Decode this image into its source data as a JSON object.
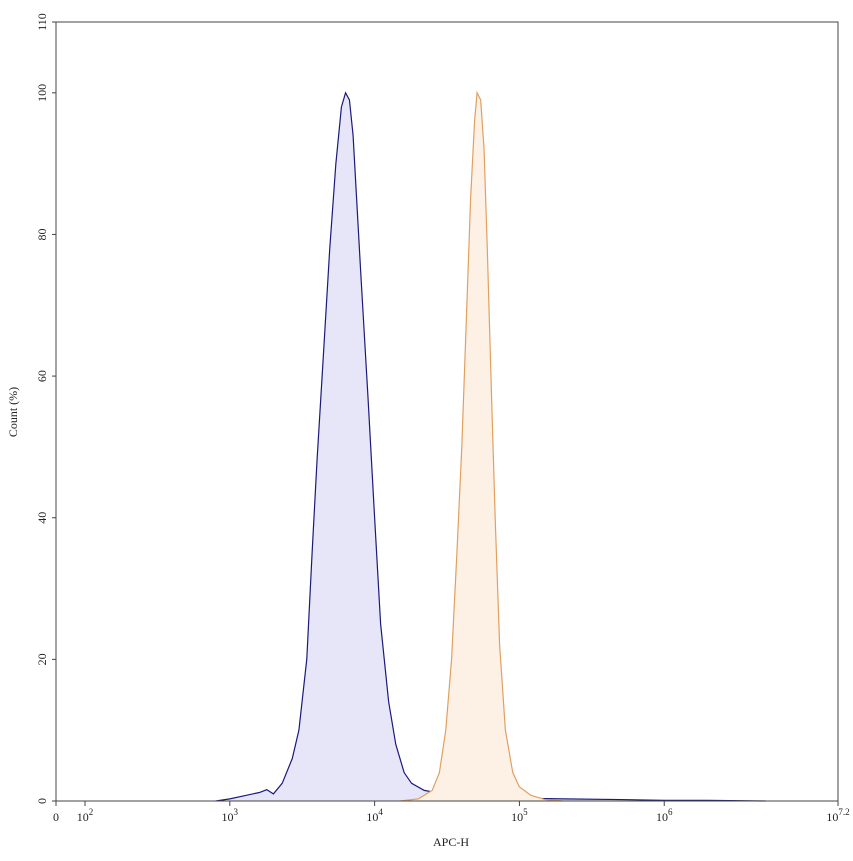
{
  "chart_data": {
    "type": "histogram-overlay",
    "x_label": "APC-H",
    "y_label": "Count (%)",
    "xscale": "biexponential",
    "xlim": [
      0,
      15848932
    ],
    "xticks": [
      0,
      {
        "value": 100,
        "label": "10",
        "exponent": "2"
      },
      {
        "value": 1000,
        "label": "10",
        "exponent": "3"
      },
      {
        "value": 10000,
        "label": "10",
        "exponent": "4"
      },
      {
        "value": 100000,
        "label": "10",
        "exponent": "5"
      },
      {
        "value": 1000000,
        "label": "10",
        "exponent": "6"
      },
      {
        "value": 15848932,
        "label": "10",
        "exponent": "7.2"
      }
    ],
    "ylim": [
      0,
      110
    ],
    "yticks": [
      0,
      20,
      40,
      60,
      80,
      100,
      110
    ],
    "series": [
      {
        "color": "#1a1a7a",
        "fill": "#e6e6f8",
        "x": [
          800,
          1000,
          1300,
          1600,
          1800,
          2000,
          2300,
          2700,
          3000,
          3400,
          3700,
          4000,
          4400,
          4900,
          5400,
          5900,
          6300,
          6700,
          7100,
          8000,
          9000,
          10000,
          11000,
          12500,
          14000,
          16000,
          18000,
          22000,
          30000,
          40000,
          50000,
          60000,
          100000,
          200000,
          500000,
          1000000,
          2000000,
          5000000
        ],
        "values": [
          0,
          0.3,
          0.8,
          1.2,
          1.6,
          1,
          2.5,
          6,
          10,
          20,
          35,
          48,
          62,
          78,
          90,
          98,
          100,
          99,
          94,
          75,
          57,
          40,
          25,
          14,
          8,
          4,
          2.5,
          1.5,
          1,
          0.6,
          0.8,
          0.4,
          0.4,
          0.3,
          0.2,
          0.1,
          0.1,
          0
        ]
      },
      {
        "color": "#e0a060",
        "fill": "#fdf1e6",
        "x": [
          15000,
          20000,
          25000,
          28000,
          31000,
          34000,
          37000,
          40000,
          43000,
          46000,
          49000,
          51000,
          54000,
          57000,
          60000,
          64000,
          68000,
          73000,
          80000,
          90000,
          100000,
          120000,
          150000,
          200000
        ],
        "values": [
          0,
          0.3,
          1.5,
          4,
          10,
          20,
          35,
          50,
          68,
          85,
          96,
          100,
          99,
          92,
          78,
          58,
          40,
          22,
          10,
          4,
          2,
          0.8,
          0.2,
          0
        ]
      }
    ]
  }
}
